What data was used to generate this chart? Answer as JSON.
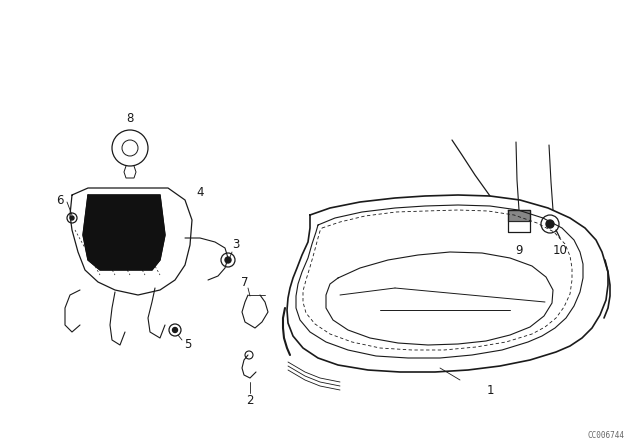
{
  "background_color": "#ffffff",
  "watermark": "CC006744",
  "line_color": "#1a1a1a",
  "text_color": "#1a1a1a",
  "fig_w": 6.4,
  "fig_h": 4.48,
  "dpi": 100
}
